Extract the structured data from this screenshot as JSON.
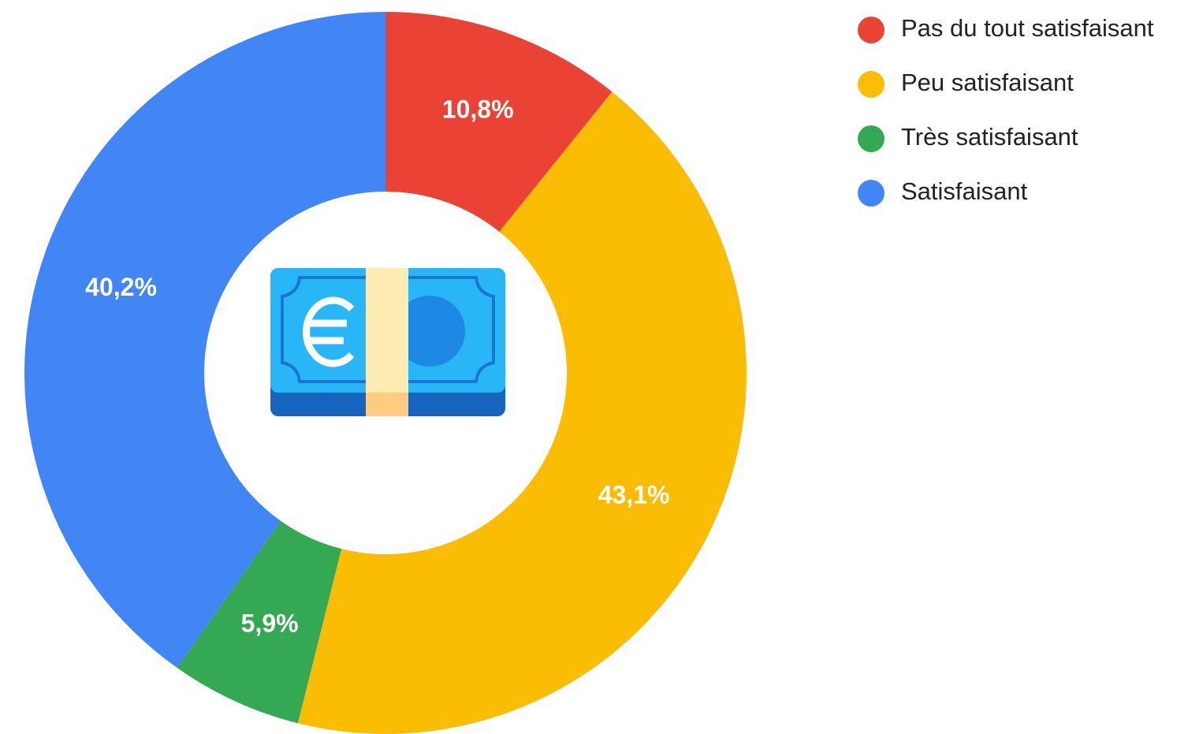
{
  "chart_data": {
    "type": "donut",
    "categories": [
      "Pas du tout satisfaisant",
      "Peu satisfaisant",
      "Très satisfaisant",
      "Satisfaisant"
    ],
    "values": [
      10.8,
      43.1,
      5.9,
      40.2
    ],
    "value_labels": [
      "10,8%",
      "43,1%",
      "5,9%",
      "40,2%"
    ],
    "colors": [
      "#ea4335",
      "#fbbc04",
      "#34a853",
      "#4285f4"
    ],
    "legend": "top-right"
  }
}
